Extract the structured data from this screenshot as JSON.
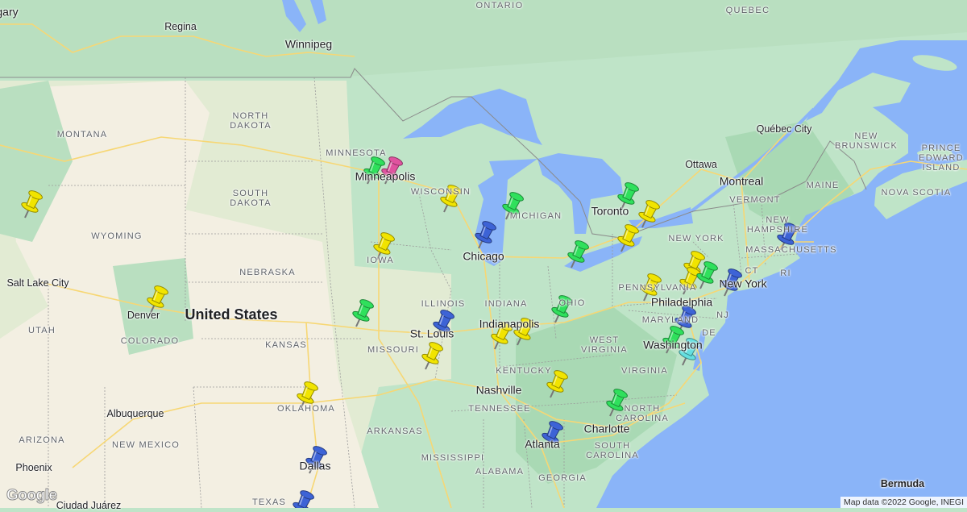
{
  "labels": {
    "ontario": "ONTARIO",
    "quebec": "QUEBEC",
    "calgary": "gary",
    "regina": "Regina",
    "winnipeg": "Winnipeg",
    "north_dakota": "NORTH\nDAKOTA",
    "montana": "MONTANA",
    "south_dakota": "SOUTH\nDAKOTA",
    "wyoming": "WYOMING",
    "minnesota": "MINNESOTA",
    "minneapolis": "Minneapolis",
    "wisconsin": "WISCONSIN",
    "michigan": "MICHIGAN",
    "iowa": "IOWA",
    "nebraska": "NEBRASKA",
    "chicago": "Chicago",
    "salt_lake_city": "Salt Lake City",
    "denver": "Denver",
    "united_states": "United States",
    "utah": "UTAH",
    "colorado": "COLORADO",
    "kansas": "KANSAS",
    "missouri": "MISSOURI",
    "illinois": "ILLINOIS",
    "indiana": "INDIANA",
    "ohio": "OHIO",
    "st_louis": "St. Louis",
    "indianapolis": "Indianapolis",
    "west_virginia": "WEST\nVIRGINIA",
    "kentucky": "KENTUCKY",
    "virginia": "VIRGINIA",
    "nashville": "Nashville",
    "tennessee": "TENNESSEE",
    "north_carolina": "NORTH\nCAROLINA",
    "charlotte": "Charlotte",
    "oklahoma": "OKLAHOMA",
    "albuquerque": "Albuquerque",
    "arizona": "ARIZONA",
    "new_mexico": "NEW MEXICO",
    "arkansas": "ARKANSAS",
    "atlanta": "Atlanta",
    "south_carolina": "SOUTH\nCAROLINA",
    "mississippi": "MISSISSIPPI",
    "alabama": "ALABAMA",
    "georgia": "GEORGIA",
    "dallas": "Dallas",
    "phoenix": "Phoenix",
    "texas": "TEXAS",
    "ciudad_juarez": "Ciudad Juárez",
    "bermuda": "Bermuda",
    "toronto": "Toronto",
    "ottawa": "Ottawa",
    "montreal": "Montreal",
    "quebec_city": "Québec City",
    "new_brunswick": "NEW\nBRUNSWICK",
    "pei": "PRINCE\nEDWARD\nISLAND",
    "maine": "MAINE",
    "nova_scotia": "NOVA SCOTIA",
    "vermont": "VERMONT",
    "new_hampshire": "NEW\nHAMPSHIRE",
    "new_york_state": "NEW YORK",
    "massachusetts": "MASSACHUSETTS",
    "ct": "CT",
    "ri": "RI",
    "pennsylvania": "PENNSYLVANIA",
    "new_york_city": "New York",
    "philadelphia": "Philadelphia",
    "nj": "NJ",
    "maryland": "MARYLAND",
    "de": "DE",
    "washington": "Washington"
  },
  "pin_colors": {
    "yellow": "#f1e400",
    "green": "#2fe05c",
    "blue": "#3d63d6",
    "pink": "#e0539f",
    "cyan": "#64dfe0"
  },
  "pins": [
    {
      "color": "yellow"
    },
    {
      "color": "green"
    },
    {
      "color": "pink"
    },
    {
      "color": "yellow"
    },
    {
      "color": "green"
    },
    {
      "color": "blue"
    },
    {
      "color": "yellow"
    },
    {
      "color": "green"
    },
    {
      "color": "yellow"
    },
    {
      "color": "yellow"
    },
    {
      "color": "green"
    },
    {
      "color": "yellow"
    },
    {
      "color": "green"
    },
    {
      "color": "blue"
    },
    {
      "color": "yellow"
    },
    {
      "color": "yellow"
    },
    {
      "color": "yellow"
    },
    {
      "color": "green"
    },
    {
      "color": "yellow"
    },
    {
      "color": "yellow"
    },
    {
      "color": "yellow"
    },
    {
      "color": "green"
    },
    {
      "color": "blue"
    },
    {
      "color": "blue"
    },
    {
      "color": "blue"
    },
    {
      "color": "green"
    },
    {
      "color": "cyan"
    },
    {
      "color": "yellow"
    },
    {
      "color": "green"
    },
    {
      "color": "yellow"
    },
    {
      "color": "blue"
    },
    {
      "color": "blue"
    },
    {
      "color": "blue"
    }
  ],
  "map_colors": {
    "water": "#8ab4f8",
    "land": "#bfe4c8",
    "plains": "#e6ecd6",
    "desert": "#f3efe2",
    "forest": "#a6d8b2",
    "road": "#f7d774"
  },
  "logo": "Google",
  "attribution": "Map data ©2022 Google, INEGI"
}
